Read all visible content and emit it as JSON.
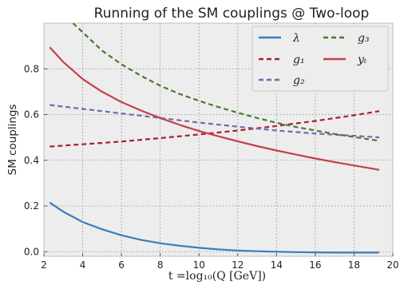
{
  "chart_data": {
    "type": "line",
    "title": "Running of the SM couplings @ Two-loop",
    "xlabel": "t =log₁₀(Q [GeV])",
    "ylabel": "SM couplings",
    "xlim": [
      2,
      20
    ],
    "ylim": [
      -0.02,
      1.0
    ],
    "x_ticks": [
      "2",
      "4",
      "6",
      "8",
      "10",
      "12",
      "14",
      "16",
      "18",
      "20"
    ],
    "y_ticks": [
      "0.0",
      "0.2",
      "0.4",
      "0.6",
      "0.8"
    ],
    "grid": true,
    "legend_position": "top-right",
    "series": [
      {
        "name": "λ",
        "color": "#3a7bbf",
        "style": "solid",
        "x": [
          2.3,
          3,
          4,
          5,
          6,
          7,
          8,
          9,
          10,
          11,
          12,
          13,
          14,
          15,
          16,
          17,
          18,
          19,
          19.3
        ],
        "y": [
          0.215,
          0.175,
          0.13,
          0.098,
          0.072,
          0.052,
          0.037,
          0.026,
          0.017,
          0.01,
          0.005,
          0.002,
          0.0,
          -0.002,
          -0.003,
          -0.004,
          -0.004,
          -0.004,
          -0.004
        ]
      },
      {
        "name": "g₁",
        "color": "#a8202c",
        "style": "dashed",
        "x": [
          2.3,
          4,
          6,
          8,
          10,
          12,
          14,
          16,
          18,
          19.3
        ],
        "y": [
          0.46,
          0.47,
          0.482,
          0.497,
          0.513,
          0.53,
          0.55,
          0.572,
          0.597,
          0.615
        ]
      },
      {
        "name": "g₂",
        "color": "#7567b0",
        "style": "dashed",
        "x": [
          2.3,
          4,
          6,
          8,
          10,
          12,
          14,
          16,
          18,
          19.3
        ],
        "y": [
          0.642,
          0.625,
          0.605,
          0.585,
          0.565,
          0.547,
          0.53,
          0.517,
          0.507,
          0.5
        ]
      },
      {
        "name": "g₃",
        "color": "#4a7a2a",
        "style": "dashed",
        "x": [
          3.5,
          4,
          5,
          6,
          7,
          8,
          9,
          10,
          11,
          12,
          13,
          14,
          15,
          16,
          17,
          18,
          19,
          19.3
        ],
        "y": [
          1.0,
          0.96,
          0.88,
          0.82,
          0.77,
          0.726,
          0.69,
          0.66,
          0.633,
          0.608,
          0.585,
          0.564,
          0.546,
          0.53,
          0.515,
          0.502,
          0.489,
          0.485
        ]
      },
      {
        "name": "yₜ",
        "color": "#c5404b",
        "style": "solid",
        "x": [
          2.3,
          3,
          4,
          5,
          6,
          7,
          8,
          9,
          10,
          11,
          12,
          13,
          14,
          15,
          16,
          17,
          18,
          19,
          19.3
        ],
        "y": [
          0.895,
          0.83,
          0.755,
          0.7,
          0.655,
          0.618,
          0.585,
          0.555,
          0.528,
          0.505,
          0.483,
          0.462,
          0.443,
          0.425,
          0.408,
          0.392,
          0.377,
          0.363,
          0.358
        ]
      }
    ],
    "legend": [
      {
        "label": "λ",
        "color": "#3a7bbf",
        "style": "solid"
      },
      {
        "label": "g₃",
        "color": "#4a7a2a",
        "style": "dashed"
      },
      {
        "label": "g₁",
        "color": "#a8202c",
        "style": "dashed"
      },
      {
        "label": "yₜ",
        "color": "#c5404b",
        "style": "solid"
      },
      {
        "label": "g₂",
        "color": "#7567b0",
        "style": "dashed"
      }
    ]
  }
}
